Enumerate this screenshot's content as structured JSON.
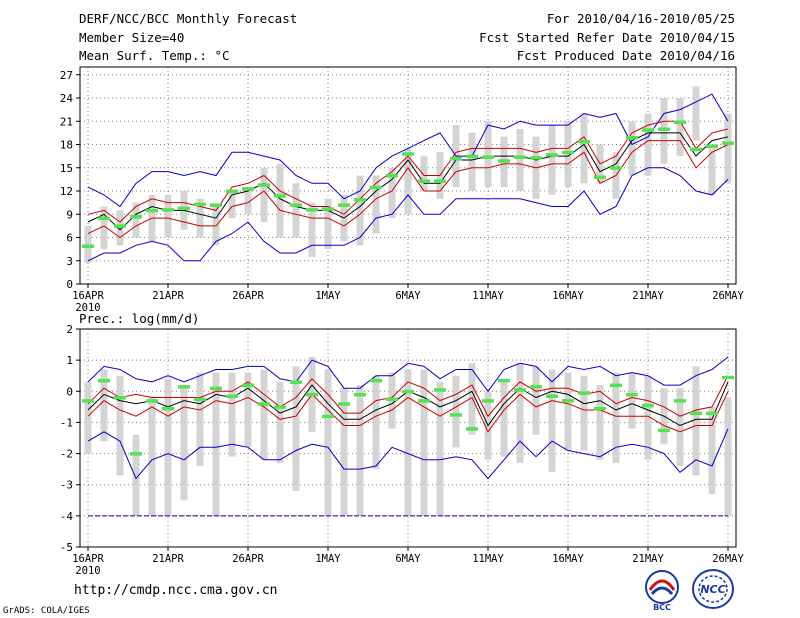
{
  "header": {
    "title": "DERF/NCC/BCC Monthly Forecast",
    "member_size": "Member Size=40",
    "variable": "Mean Surf. Temp.: °C",
    "forecast_period": "For 2010/04/16-2010/05/25",
    "started_date": "Fcst Started Refer Date 2010/04/15",
    "produced_date": "Fcst Produced Date 2010/04/16"
  },
  "footer": {
    "url": "http://cmdp.ncc.cma.gov.cn",
    "credit": "GrADS: COLA/IGES",
    "logo_bcc_text": "BCC",
    "logo_ncc_text": "NCC"
  },
  "colors": {
    "max_min": "#0000cc",
    "range": "#cc0000",
    "mean": "#000000",
    "box": "#d4d4d4",
    "median": "#55e055",
    "grid": "#808080",
    "baseline": "#0000aa"
  },
  "chart_data": [
    {
      "type": "line",
      "title": "Mean Surf. Temp.: °C",
      "x_tick_labels": [
        "16APR",
        "21APR",
        "26APR",
        "1MAY",
        "6MAY",
        "11MAY",
        "16MAY",
        "21MAY",
        "26MAY"
      ],
      "x_tick_days": [
        1,
        6,
        11,
        16,
        21,
        26,
        31,
        36,
        41
      ],
      "x_sublabel": "2010",
      "xlim": [
        1,
        41
      ],
      "ylim": [
        0,
        28
      ],
      "y_ticks": [
        0,
        3,
        6,
        9,
        12,
        15,
        18,
        21,
        24,
        27
      ],
      "grid": true,
      "series": [
        {
          "name": "max",
          "values": [
            12.5,
            11.5,
            10,
            13,
            14.5,
            14.5,
            14,
            14.5,
            14,
            17,
            17,
            16.5,
            16,
            14,
            13,
            13,
            11,
            12,
            15,
            16.5,
            17.5,
            18.5,
            19.5,
            16.5,
            16.5,
            20.5,
            20,
            21,
            20.5,
            20.5,
            20.5,
            22,
            21.5,
            22,
            18,
            19,
            22,
            22.5,
            23.5,
            24.5,
            21
          ]
        },
        {
          "name": "upper",
          "values": [
            9,
            9.5,
            8,
            10,
            11,
            10.5,
            10.5,
            10,
            9.5,
            12.5,
            13,
            14,
            12,
            11,
            10,
            10,
            9,
            11,
            13,
            14.5,
            16.5,
            14,
            14,
            17,
            17.5,
            17.5,
            17.5,
            17.5,
            17,
            17.5,
            17.5,
            19,
            15.5,
            16.5,
            19.5,
            20.5,
            21,
            21,
            17.5,
            19.5,
            20
          ]
        },
        {
          "name": "mean",
          "values": [
            8,
            9,
            7,
            9,
            10,
            9.5,
            9.5,
            9,
            8.5,
            11.5,
            12,
            13,
            11,
            10,
            9.5,
            9.5,
            8.5,
            10,
            12,
            13.5,
            16,
            13,
            13,
            16,
            16,
            16.5,
            16.5,
            16.5,
            16,
            16.5,
            16.5,
            18,
            14.5,
            15.5,
            18.5,
            19.5,
            19.5,
            19.5,
            16.5,
            18.5,
            19
          ]
        },
        {
          "name": "lower",
          "values": [
            6.5,
            7.5,
            6,
            7.5,
            8.5,
            8.5,
            8,
            7.5,
            7.5,
            10,
            10.5,
            12,
            9.5,
            9,
            8.5,
            8.5,
            7.5,
            9,
            11,
            12,
            15,
            12,
            12,
            14.5,
            15,
            15,
            15.5,
            15.5,
            15,
            15.5,
            15.5,
            17,
            13,
            14,
            17,
            18.5,
            18.5,
            18.5,
            15,
            17,
            18
          ]
        },
        {
          "name": "min",
          "values": [
            3,
            4,
            4,
            5,
            5.5,
            5,
            3,
            3,
            5.5,
            6.5,
            8,
            5.5,
            4,
            4,
            5,
            5,
            5,
            6,
            8.5,
            9,
            11.5,
            9,
            9,
            11,
            11,
            11,
            11,
            11,
            10.5,
            10,
            10,
            12,
            9,
            10,
            14,
            15,
            15,
            14,
            12,
            11.5,
            13.5
          ]
        }
      ],
      "box_ranges": [
        [
          2.7,
          7.5
        ],
        [
          4.5,
          10
        ],
        [
          5,
          9.5
        ],
        [
          6,
          10.5
        ],
        [
          5.5,
          11.5
        ],
        [
          6,
          11.5
        ],
        [
          7,
          12
        ],
        [
          6,
          11
        ],
        [
          5,
          10
        ],
        [
          8.5,
          12
        ],
        [
          9,
          12.5
        ],
        [
          8,
          15
        ],
        [
          6,
          15.5
        ],
        [
          6,
          13
        ],
        [
          3.5,
          10.5
        ],
        [
          4.5,
          11
        ],
        [
          5.5,
          11.5
        ],
        [
          5,
          14
        ],
        [
          6.5,
          14
        ],
        [
          8.5,
          15
        ],
        [
          9,
          17.5
        ],
        [
          12,
          16.5
        ],
        [
          11,
          17
        ],
        [
          12.5,
          20.5
        ],
        [
          12,
          19.5
        ],
        [
          12.5,
          21
        ],
        [
          12.5,
          19
        ],
        [
          12,
          20
        ],
        [
          11,
          19
        ],
        [
          11.5,
          20.5
        ],
        [
          12.5,
          21
        ],
        [
          13,
          22
        ],
        [
          13,
          18
        ],
        [
          11,
          17
        ],
        [
          14,
          21
        ],
        [
          14,
          22
        ],
        [
          15.5,
          24
        ],
        [
          16.5,
          24
        ],
        [
          18.5,
          25.5
        ],
        [
          11.5,
          17.5
        ],
        [
          13,
          22
        ]
      ],
      "medians": [
        4.9,
        8.5,
        7.5,
        8.7,
        9.5,
        9.6,
        9.8,
        10.3,
        10.2,
        12,
        12.3,
        12.8,
        11.4,
        10.2,
        9.6,
        9.7,
        10.2,
        10.9,
        12.5,
        14,
        16.8,
        13.3,
        13.3,
        16.2,
        16.5,
        16.4,
        15.9,
        16.4,
        16.3,
        16.7,
        17,
        18.4,
        13.8,
        15,
        18.9,
        19.9,
        20,
        20.9,
        17.4,
        17.8,
        18.2
      ]
    },
    {
      "type": "line",
      "title": "Prec.: log(mm/d)",
      "x_tick_labels": [
        "16APR",
        "21APR",
        "26APR",
        "1MAY",
        "6MAY",
        "11MAY",
        "16MAY",
        "21MAY",
        "26MAY"
      ],
      "x_tick_days": [
        1,
        6,
        11,
        16,
        21,
        26,
        31,
        36,
        41
      ],
      "x_sublabel": "2010",
      "xlim": [
        1,
        41
      ],
      "ylim": [
        -5,
        2
      ],
      "y_ticks": [
        -5,
        -4,
        -3,
        -2,
        -1,
        0,
        1,
        2
      ],
      "grid": true,
      "baseline": -4,
      "series": [
        {
          "name": "max",
          "values": [
            0.3,
            0.8,
            0.7,
            0.4,
            0.3,
            0.5,
            0.3,
            0.5,
            0.7,
            0.7,
            0.8,
            0.8,
            0.4,
            0.3,
            1.0,
            0.8,
            0.1,
            0.1,
            0.5,
            0.5,
            0.9,
            0.8,
            0.4,
            0.7,
            0.7,
            0.0,
            0.7,
            0.9,
            0.8,
            0.3,
            0.8,
            0.7,
            0.8,
            0.5,
            0.6,
            0.5,
            0.2,
            0.2,
            0.5,
            0.7,
            1.1
          ]
        },
        {
          "name": "upper",
          "values": [
            -0.4,
            0.1,
            -0.2,
            -0.1,
            -0.2,
            -0.2,
            -0.2,
            -0.2,
            0.0,
            0.0,
            0.3,
            -0.1,
            -0.5,
            -0.2,
            0.4,
            -0.1,
            -0.7,
            -0.7,
            -0.3,
            -0.2,
            0.3,
            0.1,
            -0.3,
            -0.1,
            0.2,
            -0.8,
            -0.2,
            0.3,
            0.0,
            0.1,
            0.1,
            -0.1,
            0.0,
            -0.4,
            -0.2,
            -0.3,
            -0.5,
            -0.8,
            -0.6,
            -0.5,
            0.5
          ]
        },
        {
          "name": "mean",
          "values": [
            -0.6,
            -0.1,
            -0.3,
            -0.4,
            -0.3,
            -0.5,
            -0.3,
            -0.4,
            -0.1,
            -0.2,
            0.1,
            -0.3,
            -0.7,
            -0.5,
            0.2,
            -0.4,
            -0.9,
            -0.9,
            -0.6,
            -0.4,
            0.0,
            -0.2,
            -0.5,
            -0.3,
            0.0,
            -1.1,
            -0.4,
            0.1,
            -0.2,
            0.0,
            -0.1,
            -0.4,
            -0.3,
            -0.6,
            -0.4,
            -0.6,
            -0.8,
            -1.1,
            -0.9,
            -0.9,
            0.3
          ]
        },
        {
          "name": "lower",
          "values": [
            -0.8,
            -0.3,
            -0.6,
            -0.8,
            -0.5,
            -0.8,
            -0.5,
            -0.6,
            -0.3,
            -0.4,
            -0.2,
            -0.5,
            -0.9,
            -0.8,
            -0.1,
            -0.6,
            -1.1,
            -1.1,
            -0.8,
            -0.6,
            -0.2,
            -0.5,
            -0.8,
            -0.5,
            -0.2,
            -1.3,
            -0.6,
            -0.1,
            -0.5,
            -0.3,
            -0.4,
            -0.6,
            -0.6,
            -0.8,
            -0.8,
            -0.8,
            -1.1,
            -1.3,
            -1.1,
            -1.1,
            0.0
          ]
        },
        {
          "name": "min",
          "values": [
            -1.6,
            -1.3,
            -1.6,
            -2.8,
            -2.2,
            -2.0,
            -2.2,
            -1.8,
            -1.8,
            -1.7,
            -1.8,
            -2.2,
            -2.2,
            -1.9,
            -1.7,
            -1.8,
            -2.5,
            -2.5,
            -2.4,
            -1.8,
            -2.0,
            -2.2,
            -2.2,
            -2.1,
            -2.2,
            -2.8,
            -2.2,
            -1.6,
            -2.1,
            -1.6,
            -1.9,
            -2.0,
            -2.1,
            -1.8,
            -1.7,
            -1.8,
            -2.0,
            -2.6,
            -2.2,
            -2.4,
            -1.2
          ]
        }
      ],
      "box_ranges": [
        [
          -2.0,
          0.3
        ],
        [
          -1.6,
          0.7
        ],
        [
          -2.7,
          0.5
        ],
        [
          -4.0,
          -1.4
        ],
        [
          -4.0,
          -0.2
        ],
        [
          -4.0,
          0.4
        ],
        [
          -3.5,
          0.2
        ],
        [
          -2.4,
          0.6
        ],
        [
          -4.0,
          0.6
        ],
        [
          -2.1,
          0.6
        ],
        [
          -1.8,
          0.6
        ],
        [
          -2.2,
          0.7
        ],
        [
          -2.3,
          0.3
        ],
        [
          -3.2,
          0.8
        ],
        [
          -1.3,
          1.1
        ],
        [
          -4.0,
          0.7
        ],
        [
          -4.0,
          0.1
        ],
        [
          -4.0,
          0.2
        ],
        [
          -2.5,
          0.5
        ],
        [
          -1.2,
          0.6
        ],
        [
          -4.0,
          0.7
        ],
        [
          -4.0,
          0.7
        ],
        [
          -4.0,
          0.3
        ],
        [
          -1.8,
          0.5
        ],
        [
          -1.4,
          0.9
        ],
        [
          -2.2,
          0.0
        ],
        [
          -2.1,
          0.3
        ],
        [
          -2.3,
          0.9
        ],
        [
          -1.4,
          0.8
        ],
        [
          -2.6,
          0.7
        ],
        [
          -1.9,
          0.6
        ],
        [
          -1.9,
          0.5
        ],
        [
          -2.2,
          0.2
        ],
        [
          -2.3,
          0.6
        ],
        [
          -1.2,
          0.6
        ],
        [
          -2.2,
          0.5
        ],
        [
          -1.7,
          0.1
        ],
        [
          -2.4,
          0.1
        ],
        [
          -2.7,
          0.8
        ],
        [
          -3.3,
          -0.5
        ],
        [
          -4.0,
          -0.2
        ]
      ]
    }
  ]
}
